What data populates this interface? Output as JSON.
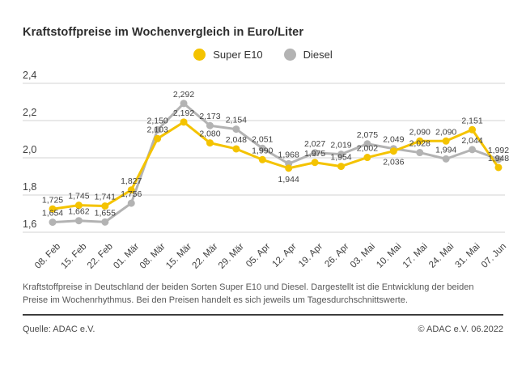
{
  "title": "Kraftstoffpreise im Wochenvergleich in Euro/Liter",
  "footnote": "Kraftstoffpreise in Deutschland der beiden Sorten Super E10 und Diesel. Dargestellt ist die Entwicklung der beiden Preise im Wochenrhythmus. Bei den Preisen handelt es sich jeweils um Tagesdurchschnittswerte.",
  "source": "Quelle: ADAC e.V.",
  "copyright": "© ADAC e.V. 06.2022",
  "colors": {
    "super_e10": "#F4C300",
    "diesel": "#B3B3B3",
    "grid": "#DCDCDC",
    "value_label": "#404040",
    "tick_label": "#3f3f3f"
  },
  "chart_data": {
    "type": "line",
    "title": "Kraftstoffpreise im Wochenvergleich in Euro/Liter",
    "categories": [
      "08. Feb",
      "15. Feb",
      "22. Feb",
      "01. Mär",
      "08. Mär",
      "15. Mär",
      "22. Mär",
      "29. Mär",
      "05. Apr",
      "12. Apr",
      "19. Apr",
      "26. Apr",
      "03. Mai",
      "10. Mai",
      "17. Mai",
      "24. Mai",
      "31. Mai",
      "07. Jun"
    ],
    "series": [
      {
        "name": "Super E10",
        "color": "#F4C300",
        "values": [
          1.725,
          1.745,
          1.741,
          1.827,
          2.103,
          2.192,
          2.08,
          2.048,
          1.99,
          1.944,
          1.975,
          1.954,
          2.002,
          2.036,
          2.09,
          2.09,
          2.151,
          1.948
        ]
      },
      {
        "name": "Diesel",
        "color": "#B3B3B3",
        "values": [
          1.654,
          1.662,
          1.655,
          1.756,
          2.15,
          2.292,
          2.173,
          2.154,
          2.051,
          1.968,
          2.027,
          2.019,
          2.075,
          2.049,
          2.028,
          1.994,
          2.044,
          1.992
        ]
      }
    ],
    "xlabel": "",
    "ylabel": "Euro/Liter",
    "ylim": [
      1.6,
      2.4
    ],
    "yticks": [
      2.4,
      2.2,
      2.0,
      1.8,
      1.6
    ],
    "grid": "horizontal",
    "legend_position": "top-center",
    "value_labels": true,
    "decimal_separator": ","
  }
}
